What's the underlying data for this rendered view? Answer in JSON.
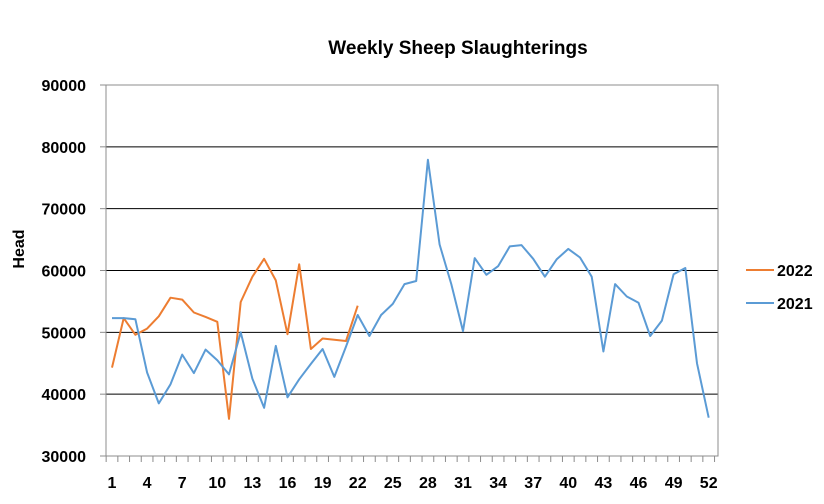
{
  "chart_data": {
    "type": "line",
    "title": "Weekly Sheep Slaughterings",
    "xlabel": "",
    "ylabel": "Head",
    "ylim": [
      30000,
      90000
    ],
    "yticks": [
      30000,
      40000,
      50000,
      60000,
      70000,
      80000,
      90000
    ],
    "xlim": [
      1,
      52
    ],
    "xticks": [
      1,
      4,
      7,
      10,
      13,
      16,
      19,
      22,
      25,
      28,
      31,
      34,
      37,
      40,
      43,
      46,
      49,
      52
    ],
    "grid": "horizontal",
    "legend_position": "right",
    "series": [
      {
        "name": "2022",
        "color": "#ED7D31",
        "x": [
          1,
          2,
          3,
          4,
          5,
          6,
          7,
          8,
          9,
          10,
          11,
          12,
          13,
          14,
          15,
          16,
          17,
          18,
          19,
          20,
          21,
          22
        ],
        "values": [
          44300,
          52300,
          49600,
          50600,
          52600,
          55600,
          55300,
          53200,
          52500,
          51700,
          36000,
          54900,
          59000,
          61900,
          58400,
          49700,
          61000,
          47300,
          49000,
          48800,
          48600,
          54300
        ]
      },
      {
        "name": "2021",
        "color": "#5B9BD5",
        "x": [
          1,
          2,
          3,
          4,
          5,
          6,
          7,
          8,
          9,
          10,
          11,
          12,
          13,
          14,
          15,
          16,
          17,
          18,
          19,
          20,
          21,
          22,
          23,
          24,
          25,
          26,
          27,
          28,
          29,
          30,
          31,
          32,
          33,
          34,
          35,
          36,
          37,
          38,
          39,
          40,
          41,
          42,
          43,
          44,
          45,
          46,
          47,
          48,
          49,
          50,
          51,
          52
        ],
        "values": [
          52300,
          52300,
          52100,
          43500,
          38500,
          41600,
          46400,
          43400,
          47200,
          45500,
          43200,
          50000,
          42500,
          37800,
          47800,
          39500,
          42400,
          44900,
          47300,
          42800,
          47700,
          52800,
          49400,
          52800,
          54600,
          57800,
          58300,
          77900,
          64200,
          57800,
          50200,
          62000,
          59300,
          60700,
          63900,
          64100,
          61900,
          59000,
          61800,
          63500,
          62100,
          59000,
          46900,
          57800,
          55800,
          54800,
          49400,
          51900,
          59400,
          60400,
          45000,
          36200
        ]
      }
    ]
  }
}
